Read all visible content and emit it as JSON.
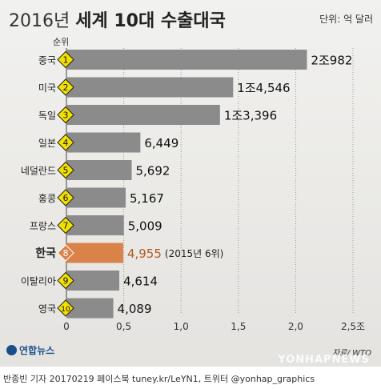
{
  "header": {
    "title_year": "2016년",
    "title_rest": "세계 10대 수출대국",
    "unit": "단위: 억 달러",
    "rank_label": "순위"
  },
  "chart_data": {
    "type": "bar",
    "orientation": "horizontal",
    "categories": [
      "중국",
      "미국",
      "독일",
      "일본",
      "네덜란드",
      "홍콩",
      "프랑스",
      "한국",
      "이탈리아",
      "영국"
    ],
    "ranks": [
      "1",
      "2",
      "3",
      "4",
      "5",
      "6",
      "7",
      "8",
      "9",
      "10"
    ],
    "values": [
      20982,
      14546,
      13396,
      6449,
      5692,
      5167,
      5009,
      4955,
      4614,
      4089
    ],
    "value_labels": [
      "2조982",
      "1조4,546",
      "1조3,396",
      "6,449",
      "5,692",
      "5,167",
      "5,009",
      "4,955",
      "4,614",
      "4,089"
    ],
    "annotations": [
      "",
      "",
      "",
      "",
      "",
      "",
      "",
      "(2015년 6위)",
      "",
      ""
    ],
    "highlight_index": 7,
    "xticks": [
      0,
      5000,
      10000,
      15000,
      20000,
      25000
    ],
    "xtick_labels": [
      "0",
      "0,5",
      "1,0",
      "1,5",
      "2,0",
      "2,5조"
    ],
    "xlim": [
      0,
      25000
    ],
    "colors": {
      "bar": "#8b8b8b",
      "highlight_bar": "#d9834a",
      "badge": "#f2e100",
      "badge_highlight": "#d9834a",
      "highlight_value": "#b25b22"
    }
  },
  "footer": {
    "logo": "연합뉴스",
    "source": "자료/ WTO",
    "watermark": "YONHAPNEWS",
    "credit": "반종빈 기자 20170219 페이스북 tuney.kr/LeYN1, 트위터 @yonhap_graphics"
  }
}
